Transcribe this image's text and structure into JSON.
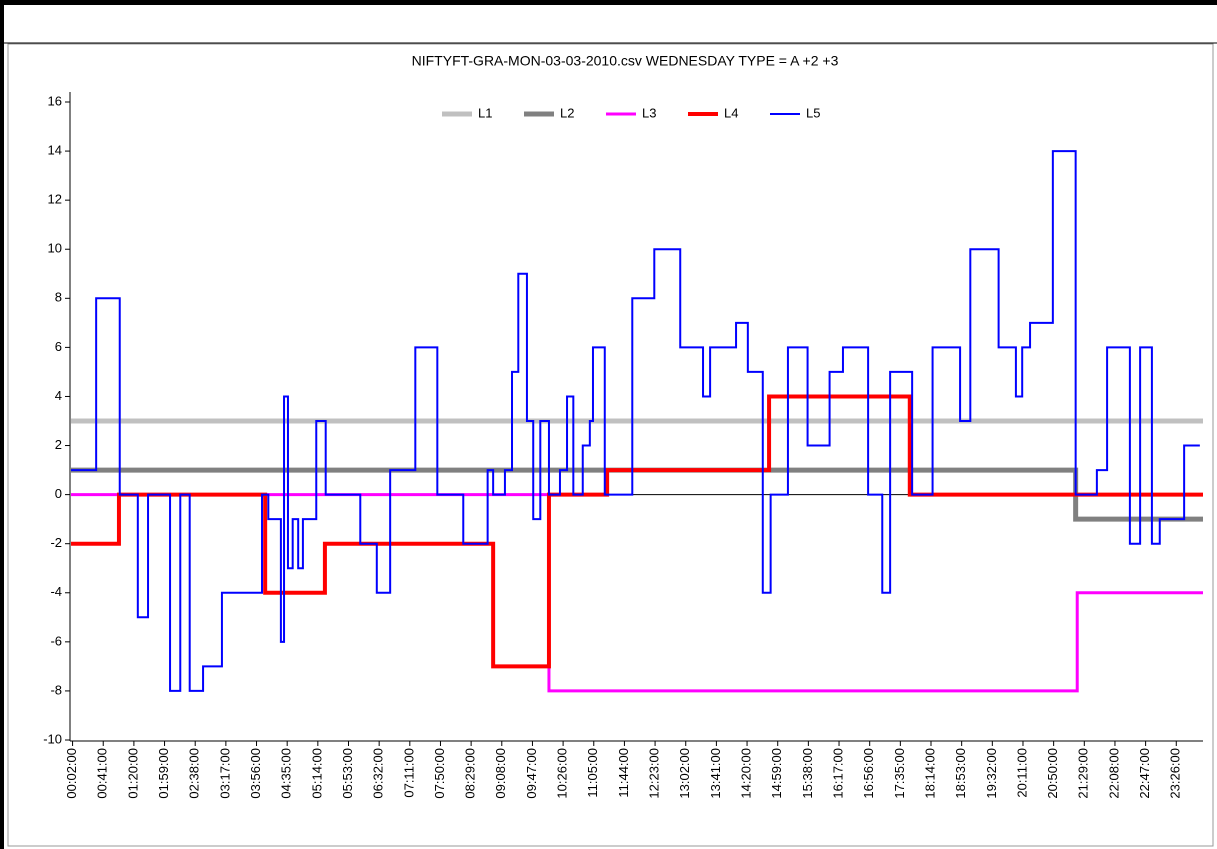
{
  "chart_data": {
    "type": "step",
    "title": "NIFTYFT-GRA-MON-03-03-2010.csv  WEDNESDAY  TYPE = A  +2 +3",
    "xlim": [
      "00:00:00",
      "24:00:00"
    ],
    "xticks": [
      "00:02:00",
      "00:41:00",
      "01:20:00",
      "01:59:00",
      "02:38:00",
      "03:17:00",
      "03:56:00",
      "04:35:00",
      "05:14:00",
      "05:53:00",
      "06:32:00",
      "07:11:00",
      "07:50:00",
      "08:29:00",
      "09:08:00",
      "09:47:00",
      "10:26:00",
      "11:05:00",
      "11:44:00",
      "12:23:00",
      "13:02:00",
      "13:41:00",
      "14:20:00",
      "14:59:00",
      "15:38:00",
      "16:17:00",
      "16:56:00",
      "17:35:00",
      "18:14:00",
      "18:53:00",
      "19:32:00",
      "20:11:00",
      "20:50:00",
      "21:29:00",
      "22:08:00",
      "22:47:00",
      "23:26:00"
    ],
    "ylim": [
      -10,
      16
    ],
    "yticks": [
      -10,
      -8,
      -6,
      -4,
      -2,
      0,
      2,
      4,
      6,
      8,
      10,
      12,
      14,
      16
    ],
    "zero_line": true,
    "legend": "upper center",
    "series": [
      {
        "name": "L1",
        "color": "#c0c0c0",
        "x": [
          "00:00:00",
          "24:00:00"
        ],
        "values": [
          3,
          3
        ]
      },
      {
        "name": "L2",
        "color": "#808080",
        "x": [
          "00:00:00",
          "21:18:00",
          "24:00:00"
        ],
        "values": [
          1,
          -1,
          -1
        ]
      },
      {
        "name": "L3",
        "color": "#ff00ff",
        "x": [
          "00:00:00",
          "10:08:00",
          "21:20:00",
          "24:00:00"
        ],
        "values": [
          0,
          -8,
          -4,
          -4
        ]
      },
      {
        "name": "L4",
        "color": "#ff0000",
        "x": [
          "00:00:00",
          "01:01:00",
          "04:07:00",
          "05:23:00",
          "08:57:00",
          "10:08:00",
          "11:22:00",
          "14:48:00",
          "17:47:00",
          "24:00:00"
        ],
        "values": [
          -2,
          0,
          -4,
          -2,
          -7,
          0,
          1,
          4,
          0,
          0
        ]
      },
      {
        "name": "L5",
        "color": "#0000ff",
        "x": [
          "00:00:00",
          "00:32:00",
          "01:02:00",
          "01:25:00",
          "01:38:00",
          "02:06:00",
          "02:19:00",
          "02:31:00",
          "02:48:00",
          "03:12:00",
          "04:03:00",
          "04:11:00",
          "04:27:00",
          "04:31:00",
          "04:36:00",
          "04:42:00",
          "04:49:00",
          "04:55:00",
          "05:12:00",
          "05:24:00",
          "06:08:00",
          "06:29:00",
          "06:46:00",
          "07:18:00",
          "07:46:00",
          "08:19:00",
          "08:50:00",
          "08:57:00",
          "09:12:00",
          "09:21:00",
          "09:29:00",
          "09:40:00",
          "09:48:00",
          "09:57:00",
          "10:08:00",
          "10:22:00",
          "10:31:00",
          "10:39:00",
          "10:51:00",
          "11:00:00",
          "11:04:00",
          "11:19:00",
          "11:54:00",
          "12:22:00",
          "12:55:00",
          "13:24:00",
          "13:33:00",
          "14:06:00",
          "14:21:00",
          "14:40:00",
          "14:50:00",
          "15:12:00",
          "15:37:00",
          "16:05:00",
          "16:22:00",
          "16:54:00",
          "17:12:00",
          "17:22:00",
          "17:50:00",
          "18:16:00",
          "18:51:00",
          "19:04:00",
          "19:40:00",
          "20:02:00",
          "20:10:00",
          "20:20:00",
          "20:49:00",
          "21:18:00",
          "21:45:00",
          "21:58:00",
          "22:27:00",
          "22:40:00",
          "22:55:00",
          "23:05:00",
          "23:36:00",
          "23:56:00"
        ],
        "values": [
          1,
          8,
          0,
          -5,
          0,
          -8,
          0,
          -8,
          -7,
          -4,
          0,
          -1,
          -6,
          4,
          -3,
          -1,
          -3,
          -1,
          3,
          0,
          -2,
          -4,
          1,
          6,
          0,
          -2,
          1,
          0,
          1,
          5,
          9,
          3,
          -1,
          3,
          0,
          1,
          4,
          0,
          2,
          3,
          6,
          0,
          8,
          10,
          6,
          4,
          6,
          7,
          5,
          -4,
          0,
          6,
          2,
          5,
          6,
          0,
          -4,
          5,
          0,
          6,
          3,
          10,
          6,
          4,
          6,
          7,
          14,
          0,
          1,
          6,
          -2,
          6,
          -2,
          -1,
          2,
          2
        ]
      }
    ]
  }
}
